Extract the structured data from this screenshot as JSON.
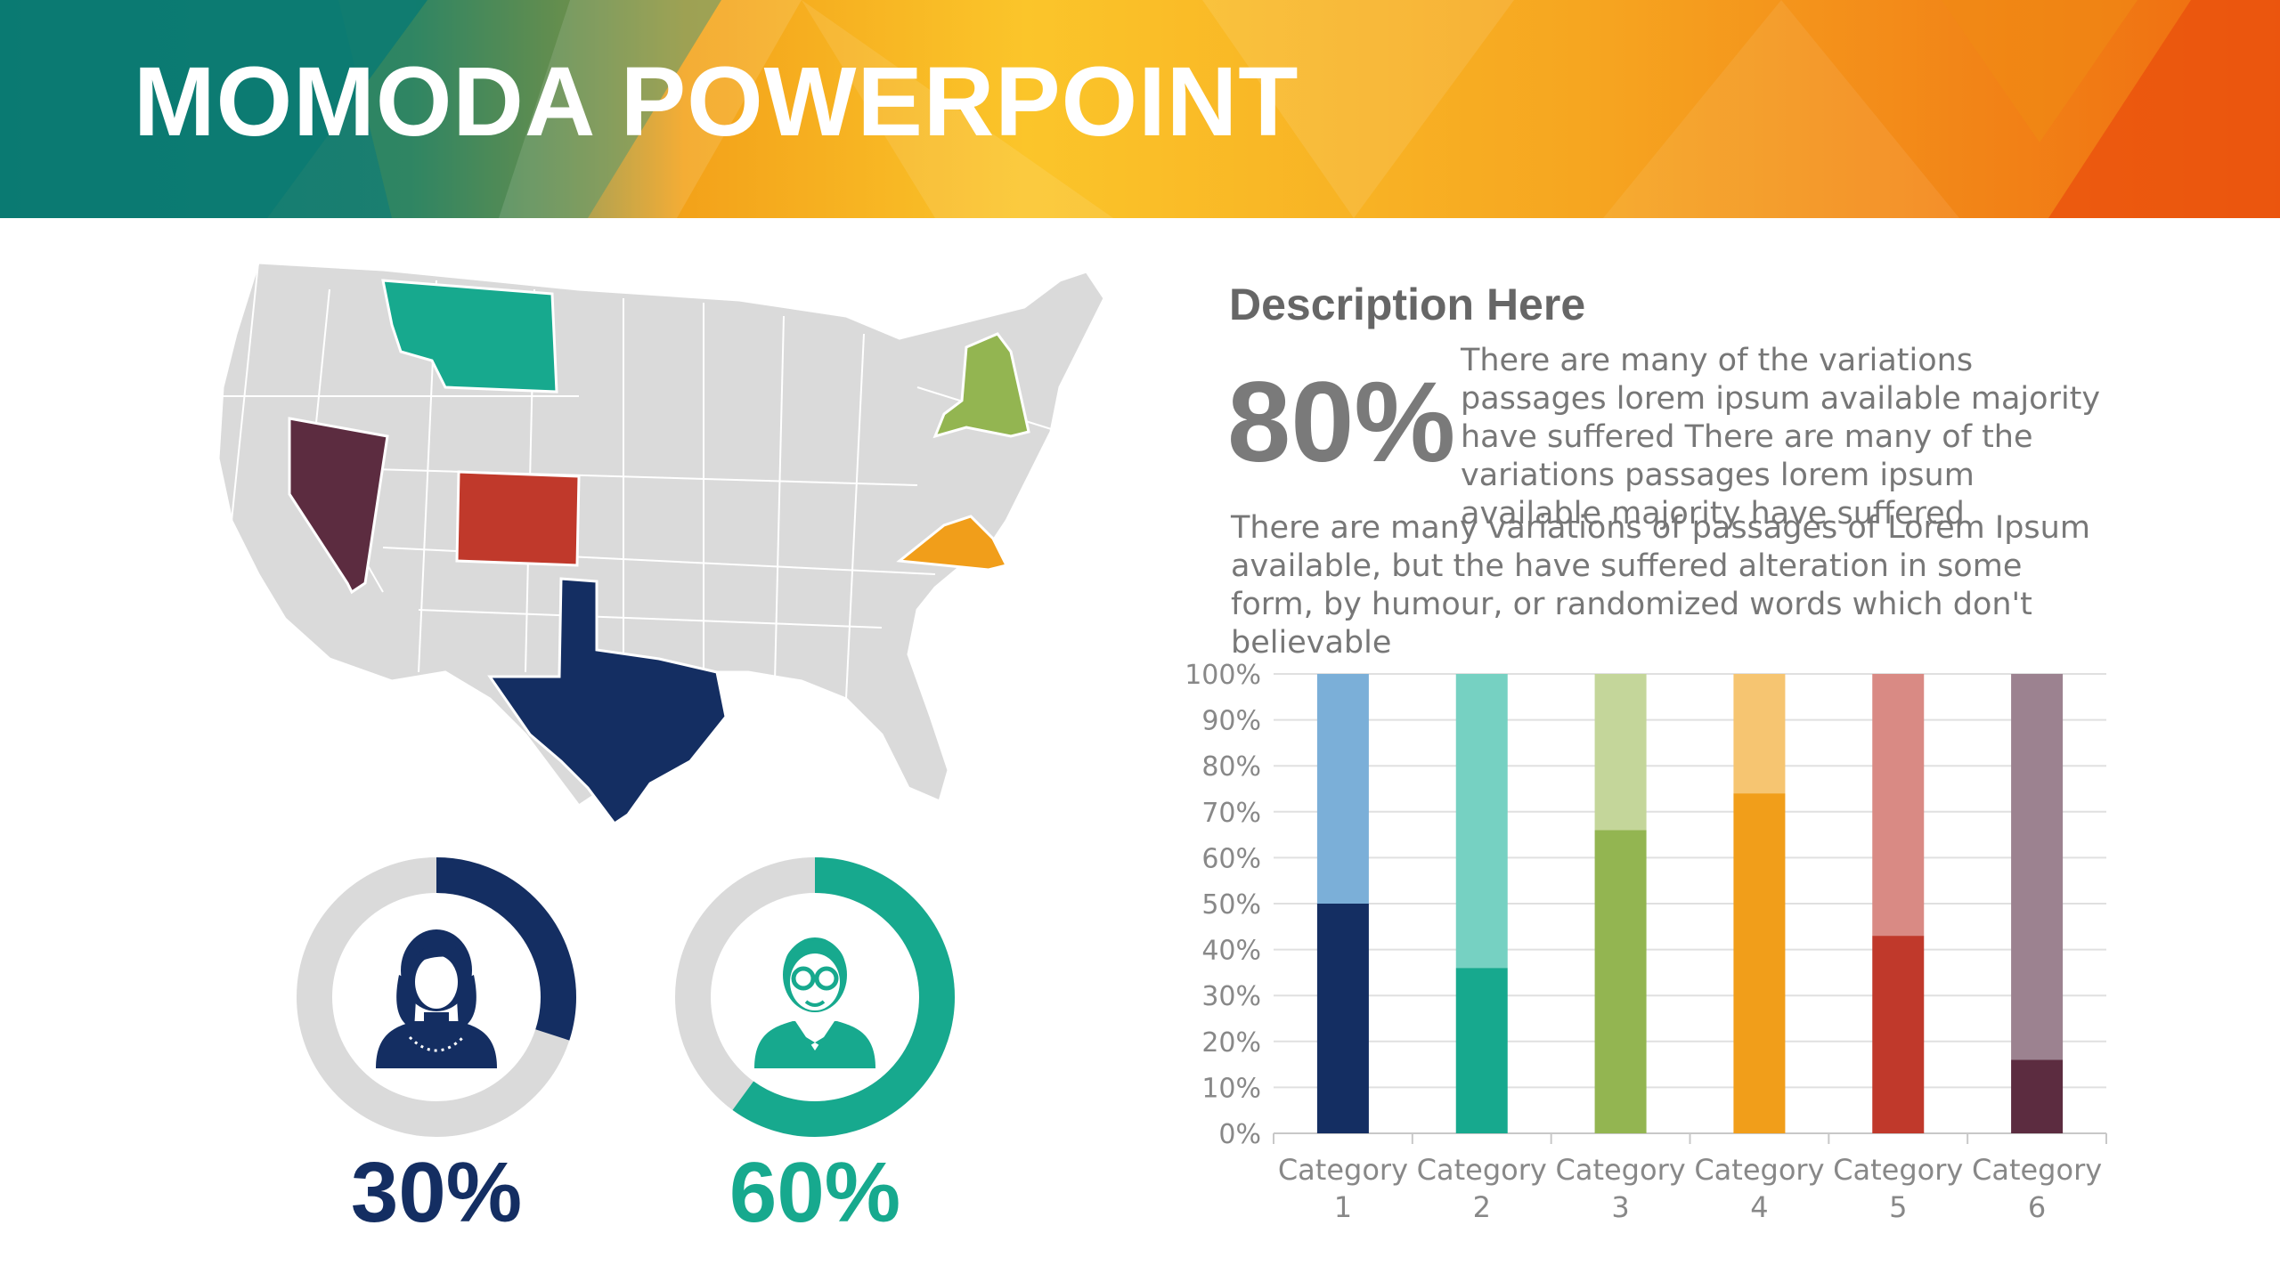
{
  "header": {
    "title": "MOMODA POWERPOINT"
  },
  "description": {
    "heading": "Description Here",
    "highlight": "80%",
    "short_text": "There are many of the variations passages lorem ipsum available majority have suffered There are many of the variations passages lorem ipsum available majority have suffered",
    "long_text": "There are many variations of passages  of Lorem Ipsum available, but the have suffered alteration in some  form, by humour, or randomized words which  don't believable"
  },
  "stats": [
    {
      "value": "30%",
      "fraction": 0.3,
      "color": "#142e62",
      "icon": "woman-avatar-icon"
    },
    {
      "value": "60%",
      "fraction": 0.6,
      "color": "#17a98e",
      "icon": "man-glasses-avatar-icon"
    }
  ],
  "map": {
    "base_color": "#dadada",
    "highlighted_states": [
      {
        "state": "Montana",
        "color": "#17a98e"
      },
      {
        "state": "Nevada",
        "color": "#5c2c40"
      },
      {
        "state": "Colorado",
        "color": "#c0392b"
      },
      {
        "state": "Texas",
        "color": "#142e62"
      },
      {
        "state": "New York",
        "color": "#93b551"
      },
      {
        "state": "Virginia",
        "color": "#f19e1a"
      }
    ]
  },
  "chart_data": {
    "type": "bar",
    "stacked": true,
    "normalized": true,
    "categories": [
      "Category 1",
      "Category 2",
      "Category 3",
      "Category 4",
      "Category 5",
      "Category 6"
    ],
    "values": [
      50,
      36,
      66,
      74,
      43,
      16
    ],
    "remainder": [
      50,
      64,
      34,
      26,
      57,
      84
    ],
    "colors": [
      "#142e62",
      "#17a98e",
      "#93b551",
      "#f19e1a",
      "#c0392b",
      "#5c2c40"
    ],
    "light_colors": [
      "#7bafd8",
      "#76d1c2",
      "#c4d69a",
      "#f6c571",
      "#d98a84",
      "#9c8290"
    ],
    "yticks": [
      "0%",
      "10%",
      "20%",
      "30%",
      "40%",
      "50%",
      "60%",
      "70%",
      "80%",
      "90%",
      "100%"
    ],
    "ylim": [
      0,
      100
    ],
    "grid": true
  }
}
